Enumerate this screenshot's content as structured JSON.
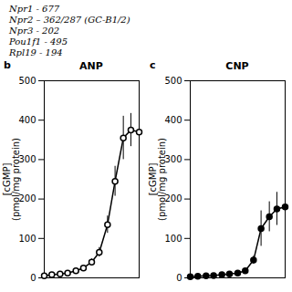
{
  "chart_data": [
    {
      "type": "gel",
      "annotations": [
        "Npr1 - 677",
        "Npr2 – 362/287 (GC-B1/2)",
        "Npr3 - 202",
        "Pou1f1 - 495",
        "Rpl19 - 194"
      ]
    },
    {
      "type": "line",
      "title": "ANP",
      "annotations": [
        "b"
      ],
      "ylabel": "[cGMP]\n(pmol/mg protein)",
      "x": [
        0.001,
        0.003,
        0.01,
        0.03,
        0.1,
        0.3,
        1.0,
        3.0,
        10.0,
        30.0,
        100.0,
        300.0,
        1000.0
      ],
      "values": [
        5,
        8,
        10,
        12,
        18,
        25,
        40,
        65,
        135,
        245,
        355,
        375,
        370
      ],
      "yerr": [
        2,
        2,
        2,
        3,
        4,
        5,
        8,
        12,
        22,
        38,
        55,
        42,
        28
      ],
      "log": "x",
      "xlim": [
        0.001,
        1000
      ],
      "ylim": [
        0,
        500
      ],
      "yticks": [
        0,
        100,
        200,
        300,
        400,
        500
      ],
      "tick_labels": "y",
      "grid": false,
      "color": "#000000",
      "marker": "open_circle"
    },
    {
      "type": "line",
      "title": "CNP",
      "annotations": [
        "c"
      ],
      "ylabel": "[cGMP]\n(pmol/mg protein)",
      "x": [
        0.001,
        0.003,
        0.01,
        0.03,
        0.1,
        0.3,
        1.0,
        3.0,
        10.0,
        30.0,
        100.0,
        300.0,
        1000.0
      ],
      "values": [
        3,
        4,
        5,
        6,
        8,
        10,
        12,
        18,
        45,
        125,
        155,
        175,
        180
      ],
      "yerr": [
        1,
        1,
        1,
        1,
        2,
        2,
        3,
        4,
        10,
        45,
        38,
        42,
        32
      ],
      "log": "x",
      "xlim": [
        0.001,
        1000
      ],
      "ylim": [
        0,
        500
      ],
      "yticks": [
        0,
        100,
        200,
        300,
        400,
        500
      ],
      "tick_labels": "y",
      "grid": false,
      "color": "#000000",
      "marker": "circle"
    }
  ]
}
